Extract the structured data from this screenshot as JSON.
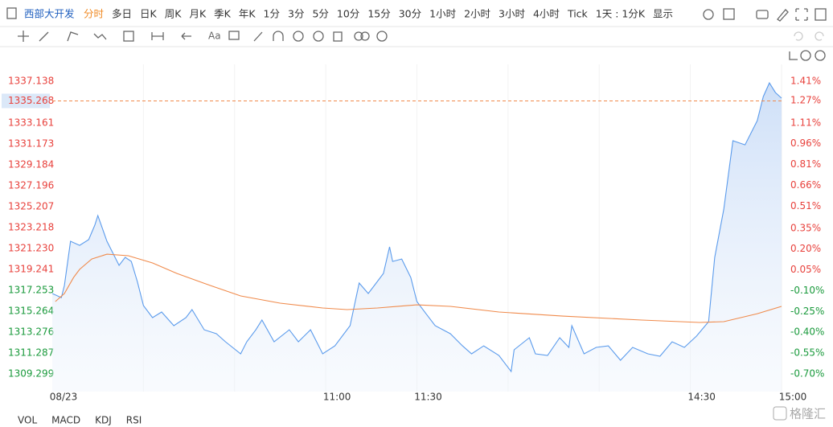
{
  "toolbar": {
    "symbol": "西部大开发",
    "timeframes": [
      "分时",
      "多日",
      "日K",
      "周K",
      "月K",
      "季K",
      "年K",
      "1分",
      "3分",
      "5分",
      "10分",
      "15分",
      "30分",
      "1小时",
      "2小时",
      "3小时",
      "4小时",
      "Tick",
      "1天 : 1分K",
      "显示"
    ],
    "active": "分时",
    "text_tool": "Aa"
  },
  "indicators": [
    "VOL",
    "MACD",
    "KDJ",
    "RSI"
  ],
  "watermark": "格隆汇",
  "chart_data": {
    "type": "line",
    "series": [
      {
        "color": "#5b9bec",
        "x": [
          0,
          3,
          4,
          6,
          9,
          12,
          14,
          15,
          18,
          22,
          24,
          26,
          28,
          30,
          33,
          36,
          40,
          44,
          46,
          50,
          54,
          57,
          62,
          64,
          67,
          69,
          73,
          78,
          81,
          85,
          89,
          93,
          98,
          101,
          104,
          106,
          109,
          111,
          112,
          115,
          118,
          120,
          123,
          126,
          131,
          135,
          138,
          142,
          147,
          151,
          152,
          157,
          159,
          163,
          167,
          170,
          171,
          175,
          179,
          183,
          187,
          191,
          196,
          200,
          204,
          208,
          212,
          216,
          218,
          221,
          224,
          228,
          232,
          234,
          236,
          238,
          240
        ],
        "values": [
          1316.95,
          1316.56,
          1317.71,
          1321.92,
          1321.53,
          1322.07,
          1323.45,
          1324.36,
          1321.92,
          1319.62,
          1320.39,
          1320.0,
          1318.09,
          1315.8,
          1314.65,
          1315.19,
          1313.89,
          1314.65,
          1315.42,
          1313.5,
          1313.12,
          1312.36,
          1311.21,
          1312.36,
          1313.5,
          1314.42,
          1312.36,
          1313.5,
          1312.36,
          1313.5,
          1311.21,
          1311.97,
          1313.89,
          1317.94,
          1316.95,
          1317.71,
          1318.86,
          1321.38,
          1320.0,
          1320.23,
          1318.47,
          1316.18,
          1315.03,
          1313.89,
          1313.12,
          1311.97,
          1311.21,
          1311.97,
          1311.06,
          1309.53,
          1311.59,
          1312.74,
          1311.21,
          1311.06,
          1312.74,
          1311.82,
          1313.89,
          1311.21,
          1311.82,
          1311.97,
          1310.6,
          1311.82,
          1311.21,
          1310.98,
          1312.36,
          1311.82,
          1312.89,
          1314.27,
          1320.39,
          1324.98,
          1331.48,
          1331.09,
          1333.39,
          1335.68,
          1336.98,
          1336.06,
          1335.53
        ]
      },
      {
        "color": "#f08a4b",
        "x": [
          1,
          4,
          7,
          9,
          13,
          18,
          25,
          33,
          41,
          52,
          62,
          75,
          89,
          97,
          107,
          120,
          131,
          147,
          168,
          194,
          213,
          221,
          232,
          240
        ],
        "values": [
          1316.18,
          1316.95,
          1318.47,
          1319.24,
          1320.23,
          1320.69,
          1320.54,
          1319.85,
          1318.86,
          1317.71,
          1316.72,
          1316.03,
          1315.57,
          1315.42,
          1315.57,
          1315.87,
          1315.72,
          1315.19,
          1314.8,
          1314.42,
          1314.19,
          1314.27,
          1315.03,
          1315.72
        ]
      }
    ],
    "current_price": 1335.268,
    "xlim": [
      0,
      240
    ],
    "xticks": [
      {
        "value": 0,
        "label": "08/23"
      },
      {
        "value": 90,
        "label": "11:00"
      },
      {
        "value": 120,
        "label": "11:30"
      },
      {
        "value": 210,
        "label": "14:30"
      },
      {
        "value": 240,
        "label": "15:00"
      }
    ],
    "xgrid": [
      30,
      60,
      90,
      120,
      150,
      180,
      210,
      240
    ],
    "ylim": [
      1307.616,
      1338.744
    ],
    "yticks": [
      1337.138,
      1335.268,
      1333.161,
      1331.173,
      1329.184,
      1327.196,
      1325.207,
      1323.218,
      {
        "value": 1321.23,
        "label": "1321.230"
      },
      1319.241,
      1317.253,
      1315.264,
      1313.276,
      1311.287,
      1309.299
    ],
    "y2lim": [
      -0.828,
      1.532
    ],
    "y2ticks": [
      {
        "value": 1.41,
        "label": "1.41%"
      },
      {
        "value": 1.27,
        "label": "1.27%"
      },
      {
        "value": 1.11,
        "label": "1.11%"
      },
      {
        "value": 0.96,
        "label": "0.96%"
      },
      {
        "value": 0.81,
        "label": "0.81%"
      },
      {
        "value": 0.66,
        "label": "0.66%"
      },
      {
        "value": 0.51,
        "label": "0.51%"
      },
      {
        "value": 0.35,
        "label": "0.35%"
      },
      {
        "value": 0.2,
        "label": "0.20%"
      },
      {
        "value": 0.05,
        "label": "0.05%"
      },
      {
        "value": -0.1,
        "label": "-0.10%"
      },
      {
        "value": -0.25,
        "label": "-0.25%"
      },
      {
        "value": -0.4,
        "label": "-0.40%"
      },
      {
        "value": -0.55,
        "label": "-0.55%"
      },
      {
        "value": -0.7,
        "label": "-0.70%"
      }
    ],
    "up_color": "#e8413c",
    "down_color": "#1a9a3c"
  }
}
